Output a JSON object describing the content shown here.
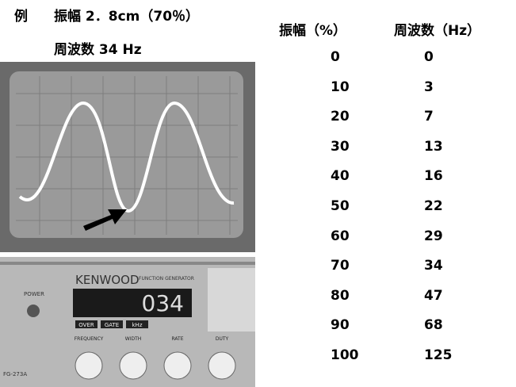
{
  "caption": {
    "label": "例",
    "amplitude": "振幅 2．8cm（70％）",
    "frequency": "周波数 34 Hz"
  },
  "photo": {
    "brand": "KENWOOD",
    "model_type": "FUNCTION GENERATOR",
    "power": "POWER",
    "display": "034",
    "indicators": [
      "OVER",
      "GATE",
      "kHz"
    ],
    "knobs": [
      "FREQUENCY",
      "WIDTH",
      "RATE",
      "DUTY"
    ],
    "model": "FG-273A"
  },
  "table": {
    "headers": [
      "振幅（%）",
      "周波数（Hz）"
    ],
    "rows": [
      [
        0,
        0
      ],
      [
        10,
        3
      ],
      [
        20,
        7
      ],
      [
        30,
        13
      ],
      [
        40,
        16
      ],
      [
        50,
        22
      ],
      [
        60,
        29
      ],
      [
        70,
        34
      ],
      [
        80,
        47
      ],
      [
        90,
        68
      ],
      [
        100,
        125
      ]
    ]
  }
}
